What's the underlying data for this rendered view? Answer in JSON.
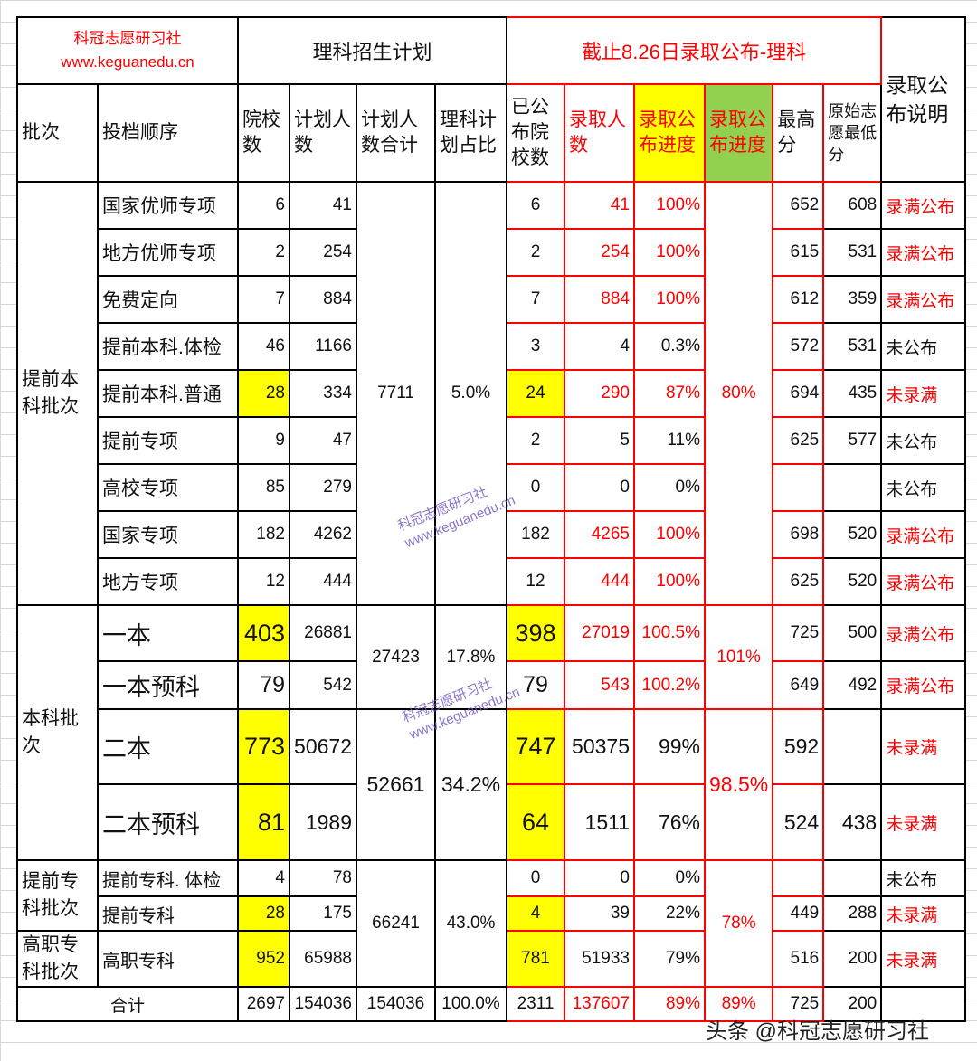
{
  "header": {
    "brand_name": "科冠志愿研习社",
    "brand_url": "www.keguanedu.cn",
    "plan_title": "理科招生计划",
    "admission_title": "截止8.26日录取公布-理科",
    "note_title": "录取公布说明"
  },
  "columns": [
    "批次",
    "投档顺序",
    "院校数",
    "计划人数",
    "计划人数合计",
    "理科计划占比",
    "已公布院校数",
    "录取人数",
    "录取公布进度",
    "录取公布进度",
    "最高分",
    "原始志愿最低分"
  ],
  "batches": [
    {
      "label": "提前本科批次"
    },
    {
      "label": "本科批次"
    },
    {
      "label": "提前专科批次"
    },
    {
      "label": "高职专科批次"
    }
  ],
  "groups": [
    {
      "plan_total": "7711",
      "ratio": "5.0%",
      "progress": "80%"
    },
    {
      "plan_total": "27423",
      "ratio": "17.8%",
      "progress": "101%"
    },
    {
      "plan_total": "52661",
      "ratio": "34.2%",
      "progress": "98.5%"
    },
    {
      "plan_total": "66241",
      "ratio": "43.0%",
      "progress": "78%"
    }
  ],
  "rows": [
    {
      "order": "国家优师专项",
      "schools": "6",
      "plan": "41",
      "published": "6",
      "admitted": "41",
      "progress": "100%",
      "max": "652",
      "min": "608",
      "note": "录满公布"
    },
    {
      "order": "地方优师专项",
      "schools": "2",
      "plan": "254",
      "published": "2",
      "admitted": "254",
      "progress": "100%",
      "max": "615",
      "min": "531",
      "note": "录满公布"
    },
    {
      "order": "免费定向",
      "schools": "7",
      "plan": "884",
      "published": "7",
      "admitted": "884",
      "progress": "100%",
      "max": "612",
      "min": "359",
      "note": "录满公布"
    },
    {
      "order": "提前本科.体检",
      "schools": "46",
      "plan": "1166",
      "published": "3",
      "admitted": "4",
      "progress": "0.3%",
      "max": "572",
      "min": "531",
      "note": "未公布"
    },
    {
      "order": "提前本科.普通",
      "schools": "28",
      "plan": "334",
      "published": "24",
      "admitted": "290",
      "progress": "87%",
      "max": "694",
      "min": "435",
      "note": "未录满"
    },
    {
      "order": "提前专项",
      "schools": "9",
      "plan": "47",
      "published": "2",
      "admitted": "5",
      "progress": "11%",
      "max": "625",
      "min": "577",
      "note": "未公布"
    },
    {
      "order": "高校专项",
      "schools": "85",
      "plan": "279",
      "published": "0",
      "admitted": "0",
      "progress": "0%",
      "max": "",
      "min": "",
      "note": "未公布"
    },
    {
      "order": "国家专项",
      "schools": "182",
      "plan": "4262",
      "published": "182",
      "admitted": "4265",
      "progress": "100%",
      "max": "698",
      "min": "520",
      "note": "录满公布"
    },
    {
      "order": "地方专项",
      "schools": "12",
      "plan": "444",
      "published": "12",
      "admitted": "444",
      "progress": "100%",
      "max": "625",
      "min": "520",
      "note": "录满公布"
    },
    {
      "order": "一本",
      "schools": "403",
      "plan": "26881",
      "published": "398",
      "admitted": "27019",
      "progress": "100.5%",
      "max": "725",
      "min": "500",
      "note": "录满公布"
    },
    {
      "order": "一本预科",
      "schools": "79",
      "plan": "542",
      "published": "79",
      "admitted": "543",
      "progress": "100.2%",
      "max": "649",
      "min": "492",
      "note": "录满公布"
    },
    {
      "order": "二本",
      "schools": "773",
      "plan": "50672",
      "published": "747",
      "admitted": "50375",
      "progress": "99%",
      "max": "592",
      "min": "",
      "note": "未录满"
    },
    {
      "order": "二本预科",
      "schools": "81",
      "plan": "1989",
      "published": "64",
      "admitted": "1511",
      "progress": "76%",
      "max": "524",
      "min": "438",
      "note": "未录满"
    },
    {
      "order": "提前专科. 体检",
      "schools": "4",
      "plan": "78",
      "published": "0",
      "admitted": "0",
      "progress": "0%",
      "max": "",
      "min": "",
      "note": "未公布"
    },
    {
      "order": "提前专科",
      "schools": "28",
      "plan": "175",
      "published": "4",
      "admitted": "39",
      "progress": "22%",
      "max": "449",
      "min": "288",
      "note": "未录满"
    },
    {
      "order": "高职专科",
      "schools": "952",
      "plan": "65988",
      "published": "781",
      "admitted": "51933",
      "progress": "79%",
      "max": "516",
      "min": "200",
      "note": "未录满"
    }
  ],
  "total": {
    "label": "合计",
    "schools": "2697",
    "plan": "154036",
    "plan_total": "154036",
    "ratio": "100.0%",
    "published": "2311",
    "admitted": "137607",
    "progress": "89%",
    "group_progress": "89%",
    "max": "725",
    "min": "200"
  },
  "watermark": {
    "name": "科冠志愿研习社",
    "url": "www.keguanedu.cn"
  },
  "footer": "头条 @科冠志愿研习社",
  "colors": {
    "highlight": "#ffff00",
    "green": "#92d050",
    "accent": "#ff0000"
  }
}
